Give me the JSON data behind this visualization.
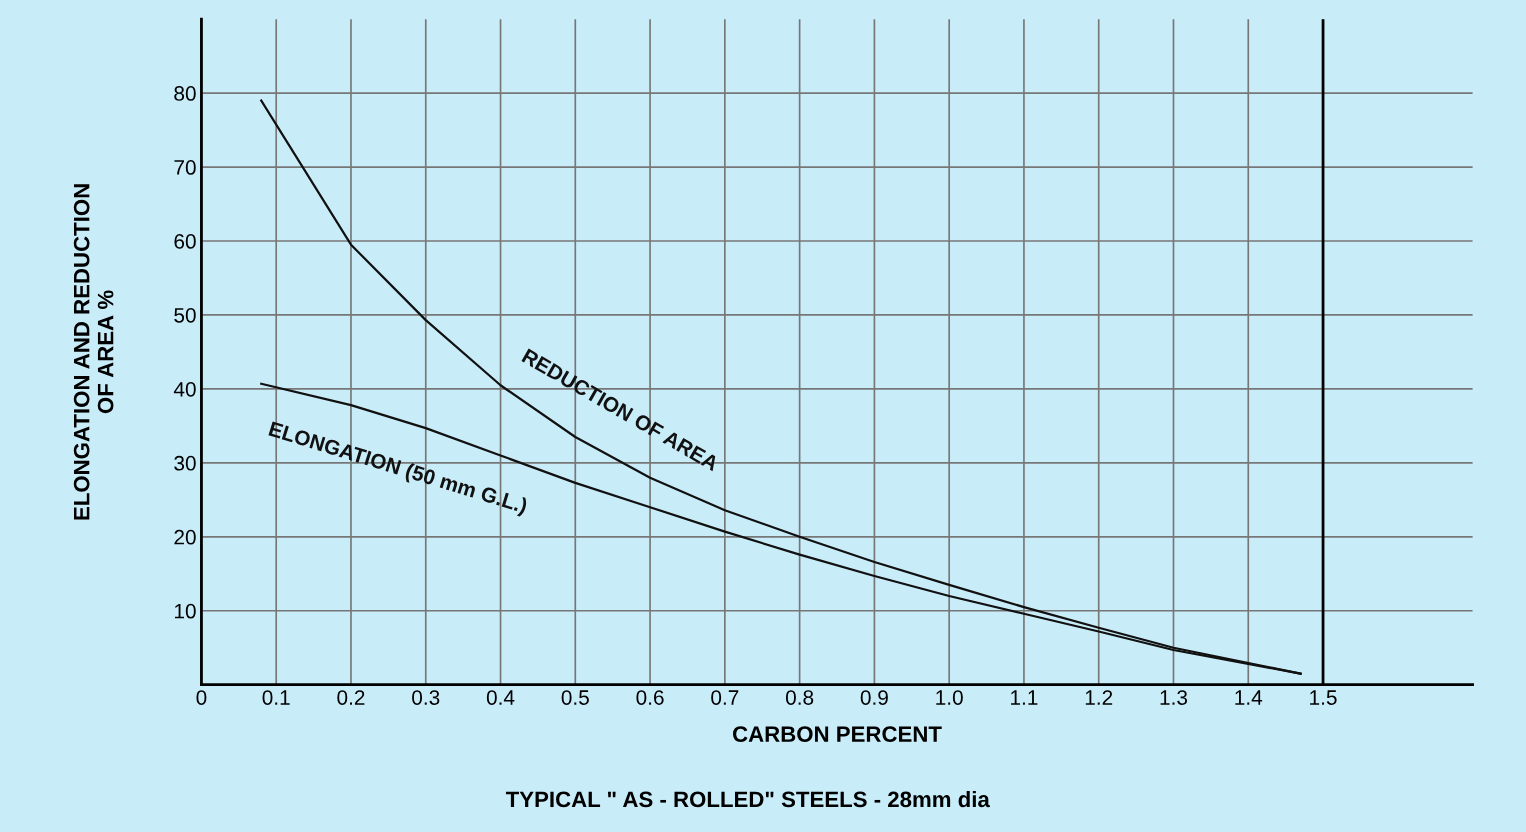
{
  "chart_data": {
    "type": "line",
    "annotations": [
      "TYPICAL \" AS - ROLLED\" STEELS - 28mm dia"
    ],
    "xlabel": "CARBON PERCENT",
    "ylabel": "ELONGATION AND REDUCTION\nOF AREA %",
    "x": [
      0.08,
      0.2,
      0.3,
      0.4,
      0.5,
      0.6,
      0.7,
      0.8,
      0.9,
      1.0,
      1.1,
      1.2,
      1.3,
      1.47
    ],
    "series": [
      {
        "name": "REDUCTION OF AREA",
        "color": "#111111",
        "values": [
          79,
          59.5,
          49.3,
          40.5,
          33.5,
          28,
          23.6,
          20,
          16.6,
          13.5,
          10.5,
          7.7,
          5,
          1.5
        ]
      },
      {
        "name": "ELONGATION (50 mm G.L.)",
        "color": "#111111",
        "values": [
          40.7,
          37.8,
          34.7,
          31,
          27.3,
          24,
          20.7,
          17.6,
          14.7,
          12,
          9.6,
          7.2,
          4.7,
          1.5
        ]
      }
    ],
    "xlim": [
      0,
      1.7
    ],
    "ylim": [
      0,
      90
    ],
    "xticks": [
      0,
      0.1,
      0.2,
      0.3,
      0.4,
      0.5,
      0.6,
      0.7,
      0.8,
      0.9,
      {
        "value": 1.0,
        "label": "1.0"
      },
      1.1,
      1.2,
      1.3,
      1.4,
      1.5
    ],
    "yticks": [
      {
        "value": 0,
        "label": null
      },
      10,
      20,
      30,
      40,
      50,
      60,
      70,
      80
    ],
    "ref_lines": [
      {
        "axis": "x",
        "value": 1.5,
        "label": null,
        "color": "#000000"
      }
    ],
    "grid": true,
    "legend": false,
    "marker": "none",
    "line_style": "solid"
  }
}
